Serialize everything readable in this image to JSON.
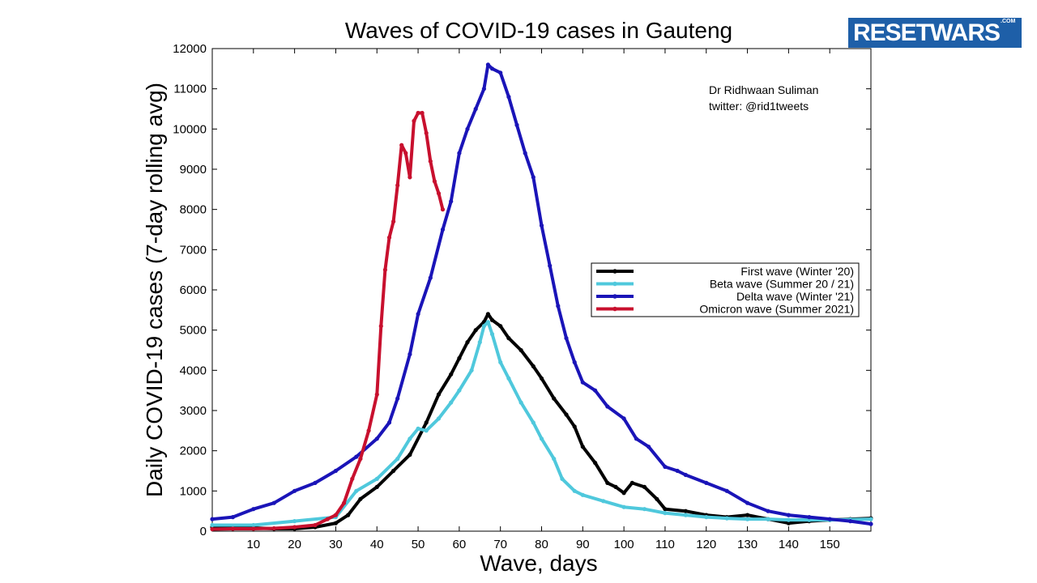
{
  "logo": {
    "text": "RESETWARS",
    "suffix": ".COM",
    "color": "#1e5fa8"
  },
  "chart_data": {
    "type": "line",
    "title": "Waves of COVID-19 cases in Gauteng",
    "xlabel": "Wave, days",
    "ylabel": "Daily COVID-19 cases (7-day rolling avg)",
    "xlim": [
      0,
      160
    ],
    "ylim": [
      0,
      12000
    ],
    "xticks": [
      10,
      20,
      30,
      40,
      50,
      60,
      70,
      80,
      90,
      100,
      110,
      120,
      130,
      140,
      150
    ],
    "yticks": [
      0,
      1000,
      2000,
      3000,
      4000,
      5000,
      6000,
      7000,
      8000,
      9000,
      10000,
      11000,
      12000
    ],
    "annotation": [
      "Dr Ridhwaan Suliman",
      "twitter: @rid1tweets"
    ],
    "legend_position": "center-right",
    "series": [
      {
        "name": "First wave (Winter '20)",
        "color": "#000000",
        "x": [
          0,
          5,
          10,
          15,
          20,
          25,
          30,
          33,
          36,
          40,
          44,
          48,
          52,
          55,
          58,
          60,
          62,
          64,
          66,
          67,
          68,
          70,
          72,
          75,
          78,
          80,
          83,
          86,
          88,
          90,
          93,
          96,
          98,
          100,
          102,
          105,
          108,
          110,
          115,
          120,
          125,
          130,
          135,
          140,
          145,
          150,
          155,
          160
        ],
        "y": [
          100,
          80,
          80,
          60,
          60,
          100,
          200,
          400,
          800,
          1100,
          1500,
          1900,
          2700,
          3400,
          3900,
          4300,
          4700,
          5000,
          5200,
          5400,
          5250,
          5100,
          4800,
          4500,
          4100,
          3800,
          3300,
          2900,
          2600,
          2100,
          1700,
          1200,
          1100,
          950,
          1200,
          1100,
          800,
          550,
          500,
          400,
          350,
          400,
          300,
          200,
          250,
          280,
          300,
          320
        ]
      },
      {
        "name": "Beta wave (Summer 20 / 21)",
        "color": "#4fc8dc",
        "x": [
          0,
          10,
          20,
          30,
          35,
          40,
          45,
          48,
          50,
          52,
          55,
          58,
          60,
          63,
          65,
          66,
          67,
          68,
          70,
          72,
          75,
          78,
          80,
          83,
          85,
          88,
          90,
          95,
          100,
          105,
          110,
          115,
          120,
          125,
          130,
          135,
          140,
          145,
          150,
          155,
          160
        ],
        "y": [
          150,
          150,
          250,
          350,
          1000,
          1300,
          1800,
          2300,
          2550,
          2500,
          2800,
          3200,
          3500,
          4000,
          4700,
          5100,
          5200,
          4900,
          4200,
          3800,
          3200,
          2700,
          2300,
          1800,
          1300,
          1000,
          900,
          750,
          600,
          550,
          450,
          400,
          350,
          320,
          300,
          300,
          280,
          280,
          280,
          290,
          300
        ]
      },
      {
        "name": "Delta wave (Winter '21)",
        "color": "#1a14b8",
        "x": [
          0,
          5,
          10,
          15,
          20,
          25,
          30,
          35,
          40,
          43,
          45,
          48,
          50,
          53,
          56,
          58,
          60,
          62,
          64,
          66,
          67,
          68,
          70,
          72,
          74,
          76,
          78,
          80,
          82,
          84,
          86,
          88,
          90,
          93,
          96,
          100,
          103,
          106,
          110,
          113,
          115,
          120,
          125,
          130,
          135,
          140,
          145,
          150,
          155,
          160
        ],
        "y": [
          300,
          350,
          550,
          700,
          1000,
          1200,
          1500,
          1850,
          2300,
          2700,
          3300,
          4400,
          5400,
          6300,
          7500,
          8200,
          9400,
          10000,
          10500,
          11000,
          11600,
          11500,
          11400,
          10800,
          10100,
          9400,
          8800,
          7600,
          6600,
          5600,
          4800,
          4200,
          3700,
          3500,
          3100,
          2800,
          2300,
          2100,
          1600,
          1500,
          1400,
          1200,
          1000,
          700,
          500,
          400,
          350,
          300,
          250,
          180
        ]
      },
      {
        "name": "Omicron wave (Summer 2021)",
        "color": "#c8102e",
        "x": [
          0,
          5,
          10,
          15,
          20,
          25,
          28,
          30,
          32,
          34,
          36,
          38,
          40,
          41,
          42,
          43,
          44,
          45,
          46,
          47,
          48,
          49,
          50,
          51,
          52,
          53,
          54,
          55,
          56
        ],
        "y": [
          50,
          60,
          60,
          70,
          100,
          150,
          300,
          400,
          700,
          1300,
          1800,
          2500,
          3400,
          5100,
          6500,
          7300,
          7700,
          8600,
          9600,
          9400,
          8800,
          10200,
          10400,
          10400,
          9900,
          9200,
          8700,
          8400,
          8000
        ]
      }
    ]
  }
}
